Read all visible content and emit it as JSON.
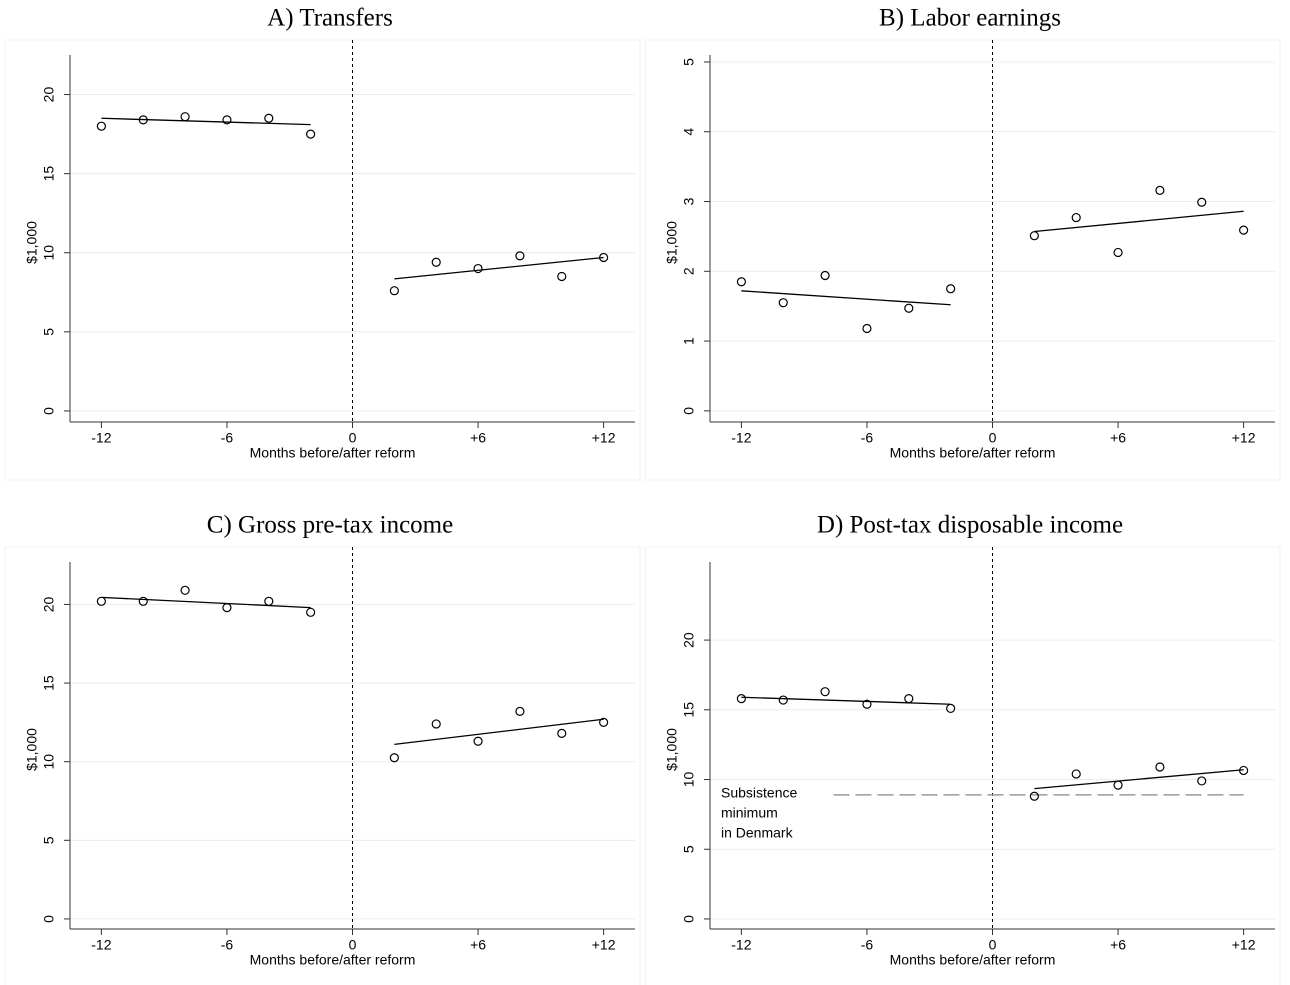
{
  "chart_data": [
    {
      "type": "scatter",
      "title": "A) Transfers",
      "x_label": "Months before/after reform",
      "y_label": "$1,000",
      "xlim": [
        -13.5,
        13.5
      ],
      "ylim": [
        -0.7,
        22.5
      ],
      "xticks": [
        -12,
        -6,
        0,
        {
          "value": 6,
          "label": "+6"
        },
        {
          "value": 12,
          "label": "+12"
        }
      ],
      "yticks": [
        0,
        5,
        10,
        15,
        20
      ],
      "grid": true,
      "color": "#000000",
      "cutoff": 0,
      "x": [
        -12,
        -10,
        -8,
        -6,
        -4,
        -2,
        2,
        4,
        6,
        8,
        10,
        12
      ],
      "values": [
        18.0,
        18.4,
        18.6,
        18.4,
        18.5,
        17.5,
        7.6,
        9.4,
        9.0,
        9.8,
        8.5,
        9.7
      ],
      "fit": [
        {
          "x": [
            -12,
            -2
          ],
          "values": [
            18.5,
            18.1
          ]
        },
        {
          "x": [
            2,
            12
          ],
          "values": [
            8.35,
            9.7
          ]
        }
      ]
    },
    {
      "type": "scatter",
      "title": "B) Labor earnings",
      "x_label": "Months before/after reform",
      "y_label": "$1,000",
      "xlim": [
        -13.5,
        13.5
      ],
      "ylim": [
        -0.16,
        5.1
      ],
      "xticks": [
        -12,
        -6,
        0,
        {
          "value": 6,
          "label": "+6"
        },
        {
          "value": 12,
          "label": "+12"
        }
      ],
      "yticks": [
        0,
        1,
        2,
        3,
        4,
        5
      ],
      "grid": true,
      "color": "#000000",
      "cutoff": 0,
      "x": [
        -12,
        -10,
        -8,
        -6,
        -4,
        -2,
        2,
        4,
        6,
        8,
        10,
        12
      ],
      "values": [
        1.85,
        1.55,
        1.94,
        1.18,
        1.47,
        1.75,
        2.51,
        2.77,
        2.27,
        3.16,
        2.99,
        2.59
      ],
      "fit": [
        {
          "x": [
            -12,
            -2
          ],
          "values": [
            1.72,
            1.52
          ]
        },
        {
          "x": [
            2,
            12
          ],
          "values": [
            2.57,
            2.86
          ]
        }
      ]
    },
    {
      "type": "scatter",
      "title": "C) Gross pre-tax income",
      "x_label": "Months before/after reform",
      "y_label": "$1,000",
      "xlim": [
        -13.5,
        13.5
      ],
      "ylim": [
        -0.64,
        22.7
      ],
      "xticks": [
        -12,
        -6,
        0,
        {
          "value": 6,
          "label": "+6"
        },
        {
          "value": 12,
          "label": "+12"
        }
      ],
      "yticks": [
        0,
        5,
        10,
        15,
        20
      ],
      "grid": true,
      "color": "#000000",
      "cutoff": 0,
      "x": [
        -12,
        -10,
        -8,
        -6,
        -4,
        -2,
        2,
        4,
        6,
        8,
        10,
        12
      ],
      "values": [
        20.2,
        20.2,
        20.9,
        19.8,
        20.2,
        19.5,
        10.25,
        12.4,
        11.3,
        13.2,
        11.8,
        12.5
      ],
      "fit": [
        {
          "x": [
            -12,
            -2
          ],
          "values": [
            20.45,
            19.8
          ]
        },
        {
          "x": [
            2,
            12
          ],
          "values": [
            11.1,
            12.7
          ]
        }
      ]
    },
    {
      "type": "scatter",
      "title": "D) Post-tax disposable income",
      "x_label": "Months before/after reform",
      "y_label": "$1,000",
      "xlim": [
        -13.5,
        13.5
      ],
      "ylim": [
        -0.72,
        25.6
      ],
      "xticks": [
        -12,
        -6,
        0,
        {
          "value": 6,
          "label": "+6"
        },
        {
          "value": 12,
          "label": "+12"
        }
      ],
      "yticks": [
        0,
        5,
        10,
        15,
        20
      ],
      "grid": true,
      "color": "#000000",
      "cutoff": 0,
      "x": [
        -12,
        -10,
        -8,
        -6,
        -4,
        -2,
        2,
        4,
        6,
        8,
        10,
        12
      ],
      "values": [
        15.8,
        15.7,
        16.3,
        15.4,
        15.8,
        15.1,
        8.8,
        10.4,
        9.6,
        10.9,
        9.9,
        10.65
      ],
      "fit": [
        {
          "x": [
            -12,
            -2
          ],
          "values": [
            15.9,
            15.4
          ]
        },
        {
          "x": [
            2,
            12
          ],
          "values": [
            9.35,
            10.7
          ]
        }
      ],
      "reference": {
        "value": 8.9,
        "x": [
          -7.6,
          12
        ],
        "label": [
          "Subsistence",
          "minimum",
          "in Denmark"
        ]
      }
    }
  ]
}
